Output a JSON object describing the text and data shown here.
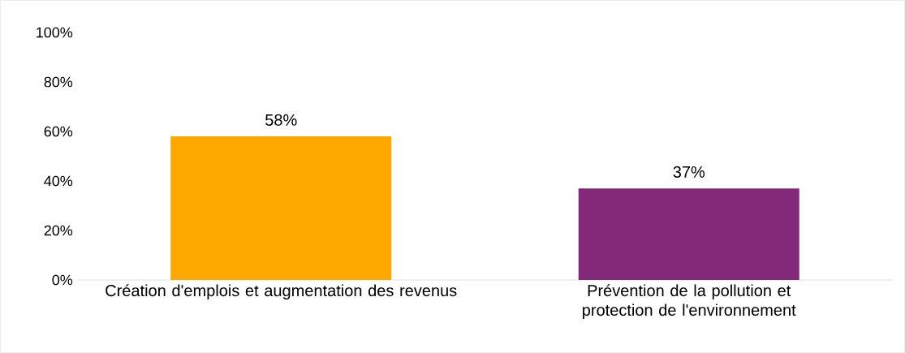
{
  "chart_data": {
    "type": "bar",
    "categories": [
      "Création d'emplois et augmentation des revenus",
      "Prévention de la pollution et protection de l'environnement"
    ],
    "values": [
      58,
      37
    ],
    "colors": [
      "#ffa800",
      "#84287a"
    ],
    "value_labels": [
      "58%",
      "37%"
    ],
    "ylim": [
      0,
      100
    ],
    "yticks": [
      {
        "value": 0,
        "label": "0%"
      },
      {
        "value": 20,
        "label": "20%"
      },
      {
        "value": 40,
        "label": "40%"
      },
      {
        "value": 60,
        "label": "60%"
      },
      {
        "value": 80,
        "label": "80%"
      },
      {
        "value": 100,
        "label": "100%"
      }
    ],
    "grid": false
  }
}
